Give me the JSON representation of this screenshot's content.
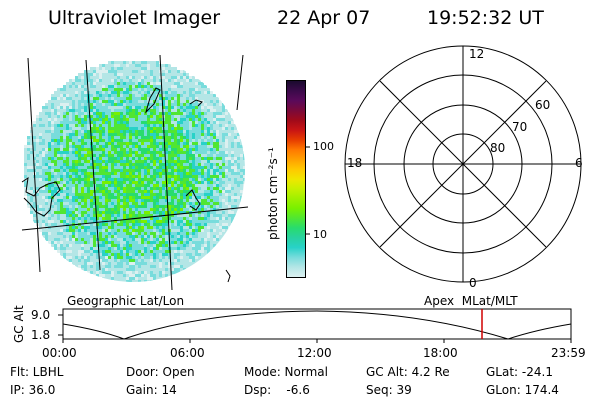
{
  "header": {
    "instrument": "Ultraviolet Imager",
    "date": "22 Apr 07",
    "time": "19:52:32 UT"
  },
  "colorbar": {
    "label": "photon cm⁻²s⁻¹",
    "ticks": [
      "100",
      "10"
    ],
    "colors": [
      "#1a0a2e",
      "#3b0a4a",
      "#5a0a5a",
      "#7a0a3a",
      "#a00a1a",
      "#c81414",
      "#e63c00",
      "#ff7800",
      "#ffa000",
      "#ffc800",
      "#f0e600",
      "#c8f000",
      "#a0f000",
      "#78f000",
      "#50e632",
      "#28dc6e",
      "#28d2a0",
      "#28d2c8",
      "#78dcdc",
      "#b4e6e6",
      "#dcf0f0"
    ]
  },
  "polar": {
    "mlt_labels": [
      "12",
      "18",
      "6",
      "0"
    ],
    "lat_labels": [
      "60",
      "70",
      "80"
    ]
  },
  "timeline": {
    "left_label": "Geographic Lat/Lon",
    "right_label": "Apex  MLat/MLT",
    "axis_label": "GC Alt",
    "y_ticks": [
      "9.0",
      "1.8"
    ],
    "x_ticks": [
      "00:00",
      "06:00",
      "12:00",
      "18:00",
      "23:59"
    ],
    "current_time_marker": "19:52"
  },
  "info": {
    "filter": "Flt: LBHL",
    "door": "Door: Open",
    "mode": "Mode: Normal",
    "gc_alt": "GC Alt: 4.2 Re",
    "glat": "GLat: -24.1",
    "ip": "IP: 36.0",
    "gain": "Gain: 14",
    "dsp": "Dsp:    -6.6",
    "seq": "Seq: 39",
    "glon": "GLon: 174.4"
  }
}
